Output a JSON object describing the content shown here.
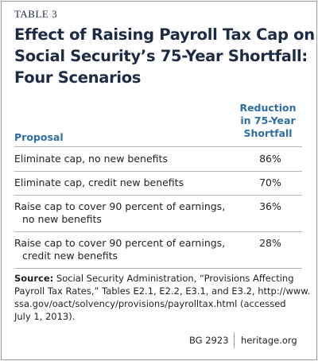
{
  "label": "TABLE 3",
  "title_lines": [
    "Effect of Raising Payroll Tax Cap on",
    "Social Security’s 75-Year Shortfall:",
    "Four Scenarios"
  ],
  "table": {
    "header": {
      "proposal": "Proposal",
      "reduction_lines": [
        "Reduction",
        "in 75-Year",
        "Shortfall"
      ]
    },
    "rows": [
      {
        "proposal": [
          "Eliminate cap, no new benefits"
        ],
        "reduction": "86%"
      },
      {
        "proposal": [
          "Eliminate cap, credit new benefits"
        ],
        "reduction": "70%"
      },
      {
        "proposal": [
          "Raise cap to cover 90 percent of earnings,",
          "no new benefits"
        ],
        "reduction": "36%"
      },
      {
        "proposal": [
          "Raise cap to cover 90 percent of earnings,",
          "credit new benefits"
        ],
        "reduction": "28%"
      }
    ]
  },
  "source": {
    "label": "Source:",
    "lines": [
      " Social Security Administration, “Provisions Affecting",
      "Payroll Tax Rates,” Tables E2.1, E2.2, E3.1, and E3.2, http://www.",
      "ssa.gov/oact/solvency/provisions/payrolltax.html (accessed",
      "July 1, 2013)."
    ]
  },
  "footer": {
    "code": "BG 2923",
    "site": "heritage.org"
  }
}
